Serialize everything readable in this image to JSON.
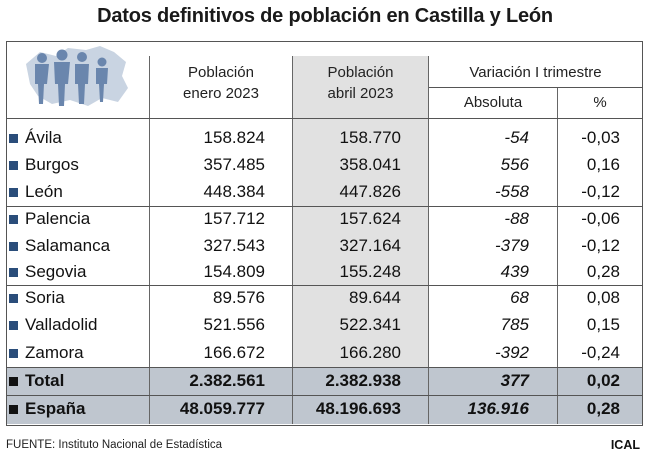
{
  "title": "Datos definitivos de población en Castilla y León",
  "headers": {
    "pob_enero": [
      "Población",
      "enero 2023"
    ],
    "pob_abril": [
      "Población",
      "abril 2023"
    ],
    "variacion": "Variación I trimestre",
    "absoluta": "Absoluta",
    "pct": "%"
  },
  "rows": [
    {
      "name": "Ávila",
      "enero": "158.824",
      "abril": "158.770",
      "abs": "-54",
      "pct": "-0,03"
    },
    {
      "name": "Burgos",
      "enero": "357.485",
      "abril": "358.041",
      "abs": "556",
      "pct": "0,16"
    },
    {
      "name": "León",
      "enero": "448.384",
      "abril": "447.826",
      "abs": "-558",
      "pct": "-0,12"
    },
    {
      "name": "Palencia",
      "enero": "157.712",
      "abril": "157.624",
      "abs": "-88",
      "pct": "-0,06"
    },
    {
      "name": "Salamanca",
      "enero": "327.543",
      "abril": "327.164",
      "abs": "-379",
      "pct": "-0,12"
    },
    {
      "name": "Segovia",
      "enero": "154.809",
      "abril": "155.248",
      "abs": "439",
      "pct": "0,28"
    },
    {
      "name": "Soria",
      "enero": "89.576",
      "abril": "89.644",
      "abs": "68",
      "pct": "0,08"
    },
    {
      "name": "Valladolid",
      "enero": "521.556",
      "abril": "522.341",
      "abs": "785",
      "pct": "0,15"
    },
    {
      "name": "Zamora",
      "enero": "166.672",
      "abril": "166.280",
      "abs": "-392",
      "pct": "-0,24"
    }
  ],
  "totals": [
    {
      "name": "Total",
      "enero": "2.382.561",
      "abril": "2.382.938",
      "abs": "377",
      "pct": "0,02"
    },
    {
      "name": "España",
      "enero": "48.059.777",
      "abril": "48.196.693",
      "abs": "136.916",
      "pct": "0,28"
    }
  ],
  "footer": "FUENTE: Instituto Nacional de Estadística",
  "brand": "ICAL",
  "colors": {
    "bullet": "#2a4d7a",
    "shade": "#e1e1e1",
    "total_band": "#bfc6cf",
    "logo": "#6a86ad",
    "logo_bg": "#c9d4e2"
  },
  "logo_icon": "people-on-map-icon"
}
